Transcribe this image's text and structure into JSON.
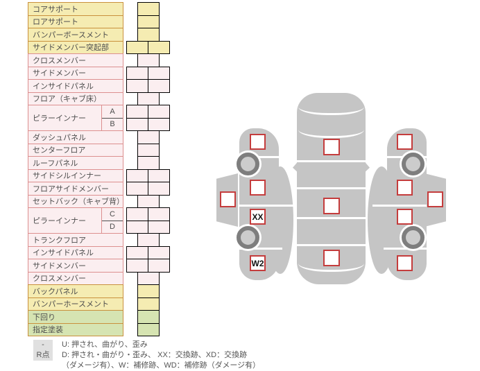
{
  "theme": {
    "yfill": "#F5ECB2",
    "ybord": "#C9903C",
    "pfill": "#FBEEF0",
    "pbord": "#DC8F8F",
    "gfill": "#D6E4B2",
    "gray": "#C5C5C5",
    "red": "#C43C3C",
    "wheel": "#7E7E7E",
    "hub": "#CCCCCC",
    "badge": "#E0E0E0"
  },
  "table": {
    "rows": [
      {
        "label": "コアサポート",
        "color": "yellow",
        "cells": 1
      },
      {
        "label": "ロアサポート",
        "color": "yellow",
        "cells": 1
      },
      {
        "label": "バンパーボースメント",
        "color": "yellow",
        "cells": 1
      },
      {
        "label": "サイドメンバー突起部",
        "color": "yellow",
        "cells": 2
      },
      {
        "label": "クロスメンバー",
        "color": "pink",
        "cells": 1
      },
      {
        "label": "サイドメンバー",
        "color": "pink",
        "cells": 2
      },
      {
        "label": "インサイドパネル",
        "color": "pink",
        "cells": 2
      },
      {
        "label": "フロア（キャブ床）",
        "color": "pink",
        "cells": 1
      },
      {
        "label": "ピラーインナー",
        "color": "pink",
        "cells": 2,
        "sub": [
          "A",
          "B"
        ]
      },
      {
        "label": "ダッシュパネル",
        "color": "pink",
        "cells": 1
      },
      {
        "label": "センターフロア",
        "color": "pink",
        "cells": 1
      },
      {
        "label": "ルーフパネル",
        "color": "pink",
        "cells": 1
      },
      {
        "label": "サイドシルインナー",
        "color": "pink",
        "cells": 2
      },
      {
        "label": "フロアサイドメンバー",
        "color": "pink",
        "cells": 2
      },
      {
        "label": "セットバック（キャブ背）",
        "color": "pink",
        "cells": 1
      },
      {
        "label": "ピラーインナー",
        "color": "pink",
        "cells": 2,
        "sub": [
          "C",
          "D"
        ]
      },
      {
        "label": "トランクフロア",
        "color": "pink",
        "cells": 1
      },
      {
        "label": "インサイドパネル",
        "color": "pink",
        "cells": 2
      },
      {
        "label": "サイドメンバー",
        "color": "pink",
        "cells": 2
      },
      {
        "label": "クロスメンバー",
        "color": "pink",
        "cells": 1
      },
      {
        "label": "バックパネル",
        "color": "yellow",
        "cells": 1
      },
      {
        "label": "バンパーホースメント",
        "color": "yellow",
        "cells": 1
      },
      {
        "label": "下回り",
        "color": "green",
        "cells": 1
      },
      {
        "label": "指定塗装",
        "color": "green",
        "cells": 1
      }
    ]
  },
  "legend": {
    "items": [
      {
        "badge": "-",
        "text": "U: 押され、曲がり、歪み"
      },
      {
        "badge": "R点",
        "text": "D: 押され・曲がり・歪み、 XX：交換跡、XD：交換跡",
        "text2": "（ダメージ有）、W：補修跡、WD：補修跡（ダメージ有）"
      }
    ]
  },
  "diagram": {
    "top_markers": {
      "front": "",
      "center": "",
      "rear": ""
    },
    "left_markers": {
      "front_fender": "",
      "front_door": "",
      "rear_door": "XX",
      "rear_fender": "W2",
      "roof": ""
    },
    "right_markers": {
      "front_fender": "",
      "front_door": "",
      "rear_door": "",
      "rear_fender": "",
      "roof": ""
    }
  }
}
